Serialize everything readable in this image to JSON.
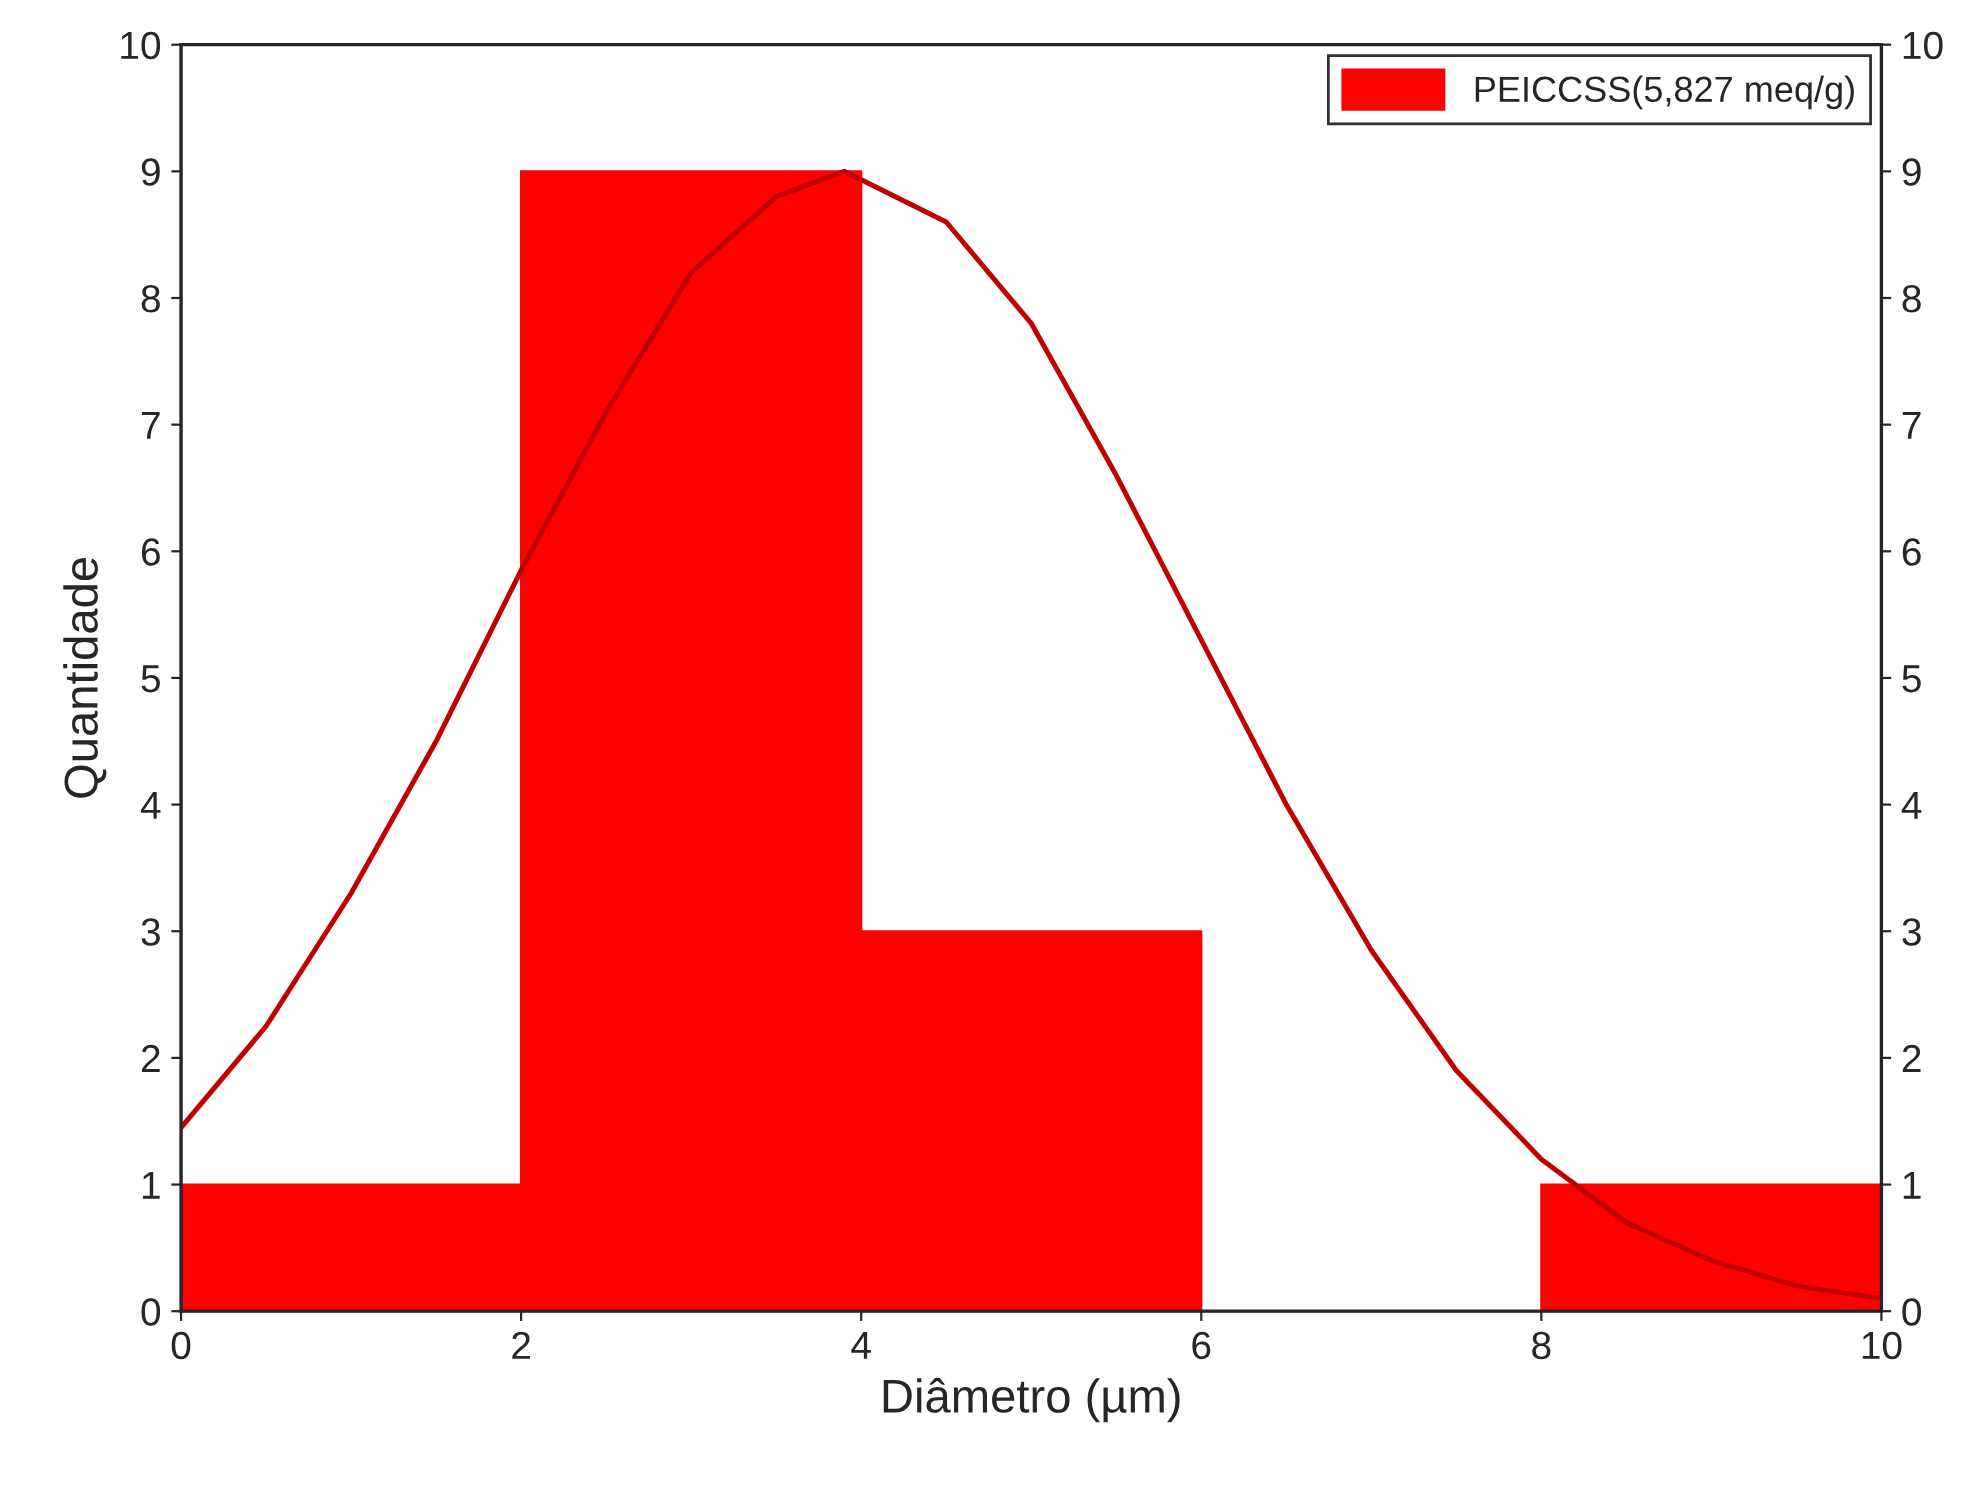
{
  "chart_data": {
    "type": "histogram",
    "xlabel": "Diâmetro (µm)",
    "ylabel": "Quantidade",
    "bins": [
      0,
      2,
      4,
      6,
      8,
      10
    ],
    "series": [
      {
        "name": "PEICCSS(5,827 meq/g)",
        "color": "#ff0000",
        "values": [
          1,
          9,
          3,
          0,
          1
        ]
      },
      {
        "type": "line",
        "color": "#c00000",
        "x": [
          0,
          0.5,
          1,
          1.5,
          2,
          2.5,
          3,
          3.5,
          3.9,
          4.5,
          5,
          5.5,
          6,
          6.5,
          7,
          7.5,
          8,
          8.5,
          9,
          9.5,
          10
        ],
        "values": [
          1.45,
          2.25,
          3.3,
          4.5,
          5.85,
          7.1,
          8.2,
          8.8,
          9.0,
          8.6,
          7.8,
          6.6,
          5.3,
          4.0,
          2.85,
          1.9,
          1.2,
          0.7,
          0.4,
          0.2,
          0.1
        ]
      }
    ],
    "xlim": [
      0,
      10
    ],
    "xticks": [
      0,
      2,
      4,
      6,
      8,
      10
    ],
    "ylim": [
      0,
      10
    ],
    "yticks": [
      0,
      1,
      2,
      3,
      4,
      5,
      6,
      7,
      8,
      9,
      10
    ],
    "y2lim": [
      0,
      10
    ],
    "y2ticks": [
      0,
      1,
      2,
      3,
      4,
      5,
      6,
      7,
      8,
      9,
      10
    ],
    "legend": "top right",
    "grid": false
  }
}
